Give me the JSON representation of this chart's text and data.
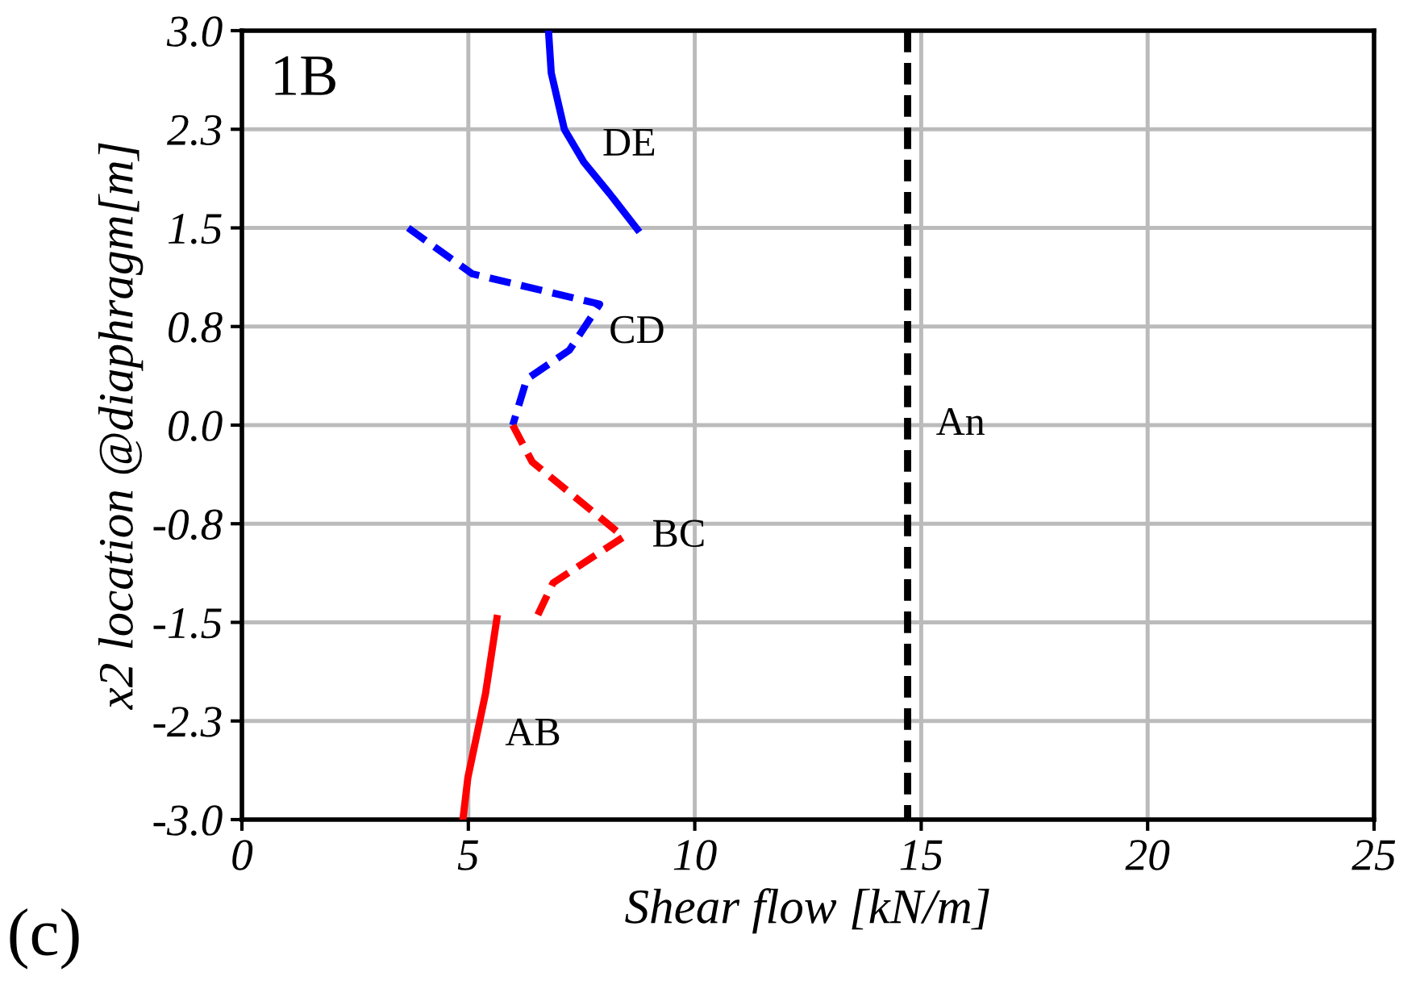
{
  "chart_data": {
    "type": "line",
    "xlabel": "Shear flow [kN/m]",
    "ylabel": "x2 location @diaphragm[m]",
    "xlim": [
      0,
      25
    ],
    "xticks": [
      0,
      5,
      10,
      15,
      20,
      25
    ],
    "ylim": [
      -3.0,
      3.0
    ],
    "yticks": [
      {
        "value": -3.0,
        "label": "-3.0"
      },
      {
        "value": -2.25,
        "label": "-2.3"
      },
      {
        "value": -1.5,
        "label": "-1.5"
      },
      {
        "value": -0.75,
        "label": "-0.8"
      },
      {
        "value": 0.0,
        "label": "0.0"
      },
      {
        "value": 0.75,
        "label": "0.8"
      },
      {
        "value": 1.5,
        "label": "1.5"
      },
      {
        "value": 2.25,
        "label": "2.3"
      },
      {
        "value": 3.0,
        "label": "3.0"
      }
    ],
    "grid": true,
    "legend": false,
    "series": [
      {
        "name": "DE",
        "color": "#0000ff",
        "line_style": "solid",
        "x": [
          6.77,
          6.83,
          7.12,
          7.55,
          8.12,
          8.73
        ],
        "values": [
          3.0,
          2.68,
          2.25,
          2.0,
          1.76,
          1.49
        ]
      },
      {
        "name": "CD",
        "color": "#0000ff",
        "line_style": "dashed",
        "x": [
          3.67,
          5.09,
          7.9,
          7.48,
          7.23,
          6.29,
          5.98
        ],
        "values": [
          1.5,
          1.15,
          0.92,
          0.7,
          0.57,
          0.35,
          0.0
        ]
      },
      {
        "name": "BC",
        "color": "#ff0000",
        "line_style": "dashed",
        "x": [
          5.98,
          6.41,
          8.43,
          6.87,
          6.47
        ],
        "values": [
          0.0,
          -0.28,
          -0.85,
          -1.2,
          -1.49
        ]
      },
      {
        "name": "AB",
        "color": "#ff0000",
        "line_style": "solid",
        "x": [
          5.63,
          5.38,
          4.99,
          4.88
        ],
        "values": [
          -1.47,
          -2.04,
          -2.68,
          -3.0
        ]
      },
      {
        "name": "An",
        "color": "#000000",
        "line_style": "dashed",
        "x": [
          14.7,
          14.7
        ],
        "values": [
          3.0,
          -3.0
        ]
      }
    ],
    "annotations": [
      "1B",
      "(c)"
    ]
  }
}
